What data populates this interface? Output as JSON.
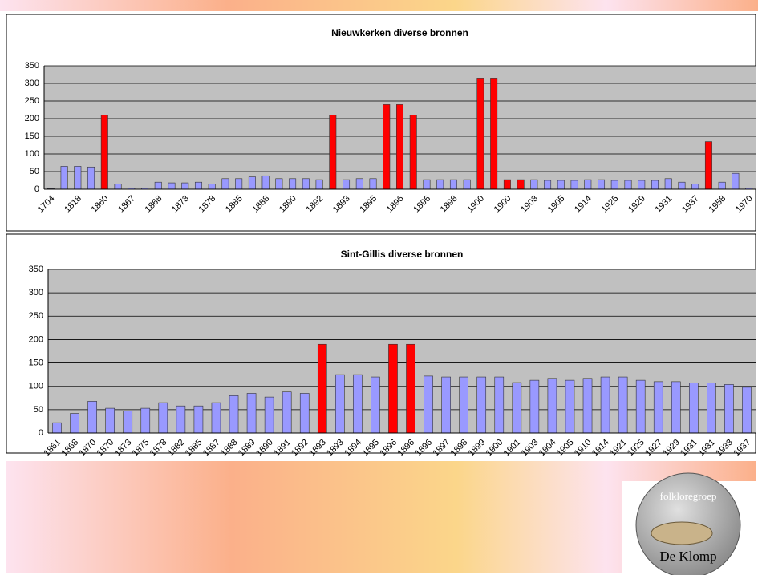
{
  "chart_data": [
    {
      "type": "bar",
      "title": "Nieuwkerken diverse bronnen",
      "categories": [
        "1704",
        null,
        "1818",
        null,
        "1860",
        null,
        "1867",
        null,
        "1868",
        null,
        "1873",
        null,
        "1878",
        null,
        "1885",
        null,
        "1888",
        null,
        "1890",
        null,
        "1892",
        null,
        "1893",
        null,
        "1895",
        null,
        "1896",
        null,
        "1896",
        null,
        "1898",
        null,
        "1900",
        null,
        "1900",
        null,
        "1903",
        null,
        "1905",
        null,
        "1914",
        null,
        "1925",
        null,
        "1929",
        null,
        "1931",
        null,
        "1937",
        null,
        "1958",
        null,
        "1970"
      ],
      "values": [
        2,
        65,
        65,
        63,
        210,
        15,
        3,
        3,
        20,
        18,
        18,
        20,
        15,
        30,
        30,
        35,
        38,
        30,
        30,
        30,
        27,
        210,
        27,
        30,
        30,
        240,
        240,
        210,
        27,
        27,
        27,
        27,
        315,
        315,
        27,
        27,
        27,
        25,
        25,
        25,
        27,
        27,
        25,
        25,
        25,
        25,
        30,
        20,
        15,
        135,
        20,
        45,
        3
      ],
      "colors": [
        "#9999ff",
        "#9999ff",
        "#9999ff",
        "#9999ff",
        "#ff0000",
        "#9999ff",
        "#9999ff",
        "#9999ff",
        "#9999ff",
        "#9999ff",
        "#9999ff",
        "#9999ff",
        "#9999ff",
        "#9999ff",
        "#9999ff",
        "#9999ff",
        "#9999ff",
        "#9999ff",
        "#9999ff",
        "#9999ff",
        "#9999ff",
        "#ff0000",
        "#9999ff",
        "#9999ff",
        "#9999ff",
        "#ff0000",
        "#ff0000",
        "#ff0000",
        "#9999ff",
        "#9999ff",
        "#9999ff",
        "#9999ff",
        "#ff0000",
        "#ff0000",
        "#ff0000",
        "#ff0000",
        "#9999ff",
        "#9999ff",
        "#9999ff",
        "#9999ff",
        "#9999ff",
        "#9999ff",
        "#9999ff",
        "#9999ff",
        "#9999ff",
        "#9999ff",
        "#9999ff",
        "#9999ff",
        "#9999ff",
        "#ff0000",
        "#9999ff",
        "#9999ff",
        "#9999ff"
      ],
      "ylim": [
        0,
        350
      ],
      "yticks": [
        0,
        50,
        100,
        150,
        200,
        250,
        300,
        350
      ],
      "grid": true
    },
    {
      "type": "bar",
      "title": "Sint-Gillis diverse bronnen",
      "categories": [
        "1861",
        "1868",
        "1870",
        "1870",
        "1873",
        "1875",
        "1878",
        "1882",
        "1885",
        "1887",
        "1888",
        "1889",
        "1890",
        "1891",
        "1892",
        "1893",
        "1893",
        "1894",
        "1895",
        "1896",
        "1896",
        "1896",
        "1897",
        "1898",
        "1899",
        "1900",
        "1901",
        "1903",
        "1904",
        "1905",
        "1910",
        "1914",
        "1921",
        "1925",
        "1927",
        "1929",
        "1931",
        "1931",
        "1933",
        "1937"
      ],
      "values": [
        22,
        42,
        68,
        53,
        47,
        53,
        65,
        58,
        58,
        65,
        80,
        85,
        77,
        88,
        85,
        190,
        125,
        125,
        120,
        190,
        190,
        122,
        120,
        120,
        120,
        120,
        108,
        113,
        117,
        113,
        117,
        120,
        120,
        113,
        110,
        110,
        107,
        107,
        104,
        98
      ],
      "colors": [
        "#9999ff",
        "#9999ff",
        "#9999ff",
        "#9999ff",
        "#9999ff",
        "#9999ff",
        "#9999ff",
        "#9999ff",
        "#9999ff",
        "#9999ff",
        "#9999ff",
        "#9999ff",
        "#9999ff",
        "#9999ff",
        "#9999ff",
        "#ff0000",
        "#9999ff",
        "#9999ff",
        "#9999ff",
        "#ff0000",
        "#ff0000",
        "#9999ff",
        "#9999ff",
        "#9999ff",
        "#9999ff",
        "#9999ff",
        "#9999ff",
        "#9999ff",
        "#9999ff",
        "#9999ff",
        "#9999ff",
        "#9999ff",
        "#9999ff",
        "#9999ff",
        "#9999ff",
        "#9999ff",
        "#9999ff",
        "#9999ff",
        "#9999ff",
        "#9999ff"
      ],
      "ylim": [
        0,
        350
      ],
      "yticks": [
        0,
        50,
        100,
        150,
        200,
        250,
        300,
        350
      ],
      "grid": true
    }
  ],
  "logo": {
    "top": "folkloregroep",
    "bottom": "De Klomp"
  }
}
